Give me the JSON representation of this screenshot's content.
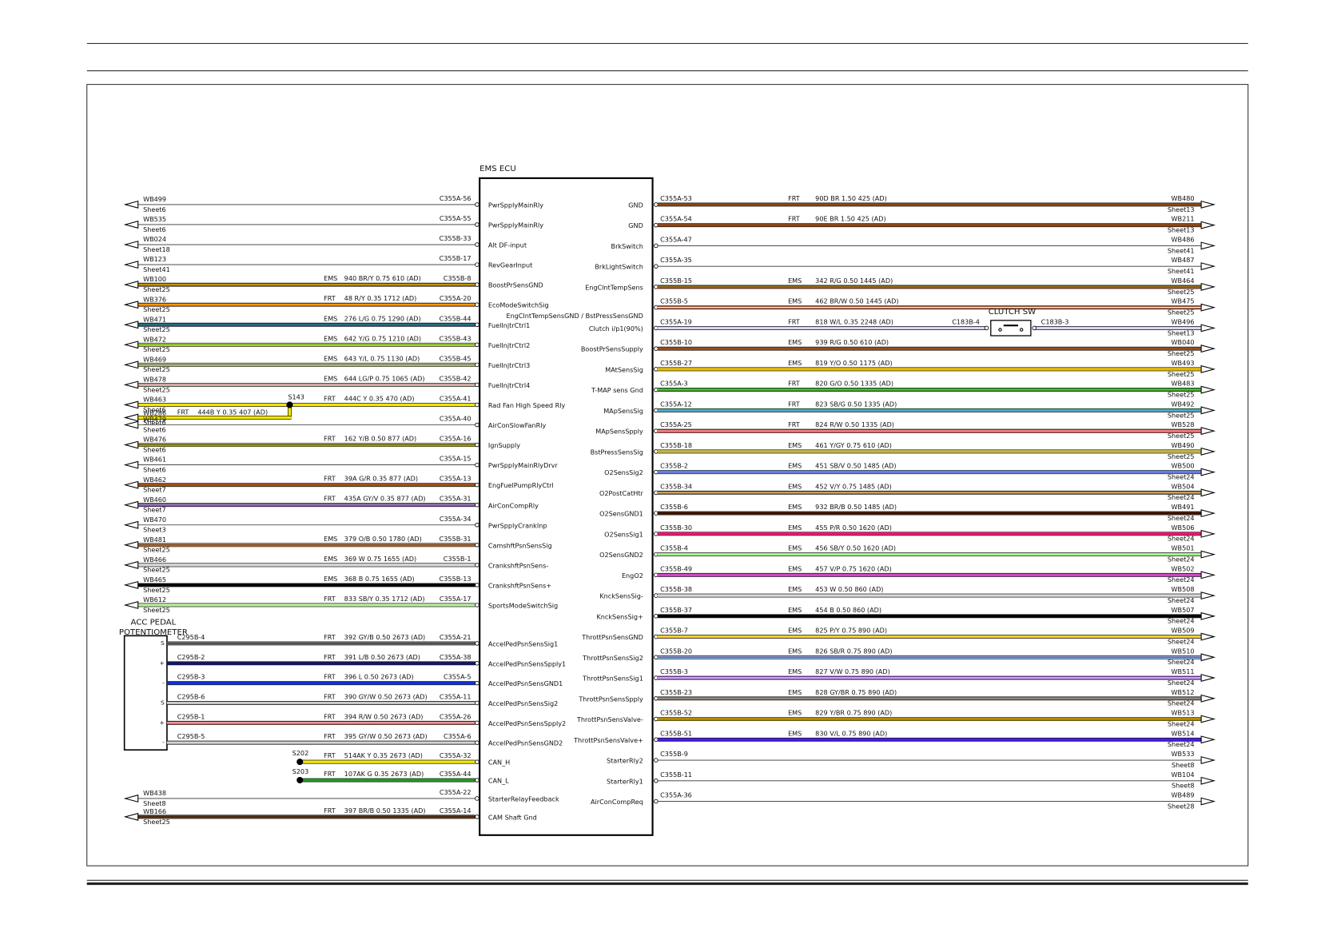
{
  "ecu": {
    "title": "EMS ECU"
  },
  "left_wires": [
    {
      "wb": "WB499",
      "sheet": "Sheet6",
      "pin": "C355A-56",
      "signal": "PwrSpplyMainRly"
    },
    {
      "wb": "WB535",
      "sheet": "Sheet6",
      "pin": "C355A-55",
      "signal": "PwrSpplyMainRly"
    },
    {
      "wb": "WB024",
      "sheet": "Sheet18",
      "pin": "C355B-33",
      "signal": "Alt DF-input"
    },
    {
      "wb": "WB123",
      "sheet": "Sheet41",
      "pin": "C355B-17",
      "signal": "RevGearInput"
    },
    {
      "wb": "WB100",
      "sheet": "Sheet25",
      "harness": "EMS",
      "spec": "940 BR/Y 0.75 610 (AD)",
      "pin": "C355B-8",
      "signal": "BoostPrSensGND",
      "color": "#8b4513",
      "stripe": "#f2e600"
    },
    {
      "wb": "WB376",
      "sheet": "Sheet25",
      "harness": "FRT",
      "spec": "48 R/Y 0.35 1712 (AD)",
      "pin": "C355A-20",
      "signal": "EcoModeSwitchSig",
      "color": "#ff4500",
      "stripe": "#ffd000"
    },
    {
      "wb": "WB471",
      "sheet": "Sheet25",
      "harness": "EMS",
      "spec": "276 L/G 0.75 1290 (AD)",
      "pin": "C355B-44",
      "signal": "FuelInjtrCtrl1",
      "color": "#1a3fd0",
      "stripe": "#2e9e2e"
    },
    {
      "wb": "WB472",
      "sheet": "Sheet25",
      "harness": "EMS",
      "spec": "642 Y/G 0.75 1210 (AD)",
      "pin": "C355B-43",
      "signal": "FuelInjtrCtrl2",
      "color": "#e8e000",
      "stripe": "#3aa83a"
    },
    {
      "wb": "WB469",
      "sheet": "Sheet25",
      "harness": "EMS",
      "spec": "643 Y/L 0.75 1130 (AD)",
      "pin": "C355B-45",
      "signal": "FuelInjtrCtrl3",
      "color": "#e8e000",
      "stripe": "#3060d0"
    },
    {
      "wb": "WB478",
      "sheet": "Sheet25",
      "harness": "EMS",
      "spec": "644 LG/P 0.75 1065 (AD)",
      "pin": "C355B-42",
      "signal": "FuelInjtrCtrl4",
      "color": "#9be08a",
      "stripe": "#ff70b0"
    },
    {
      "wb": "WB463",
      "sheet": "Sheet6",
      "harness": "FRT",
      "spec": "444C Y 0.35 470 (AD)",
      "pin": "C355A-41",
      "signal": "Rad Fan High Speed Rly",
      "color": "#f2e600",
      "branch": {
        "splice": "S143",
        "wb": "WB286",
        "sheet": "Sheet6",
        "harness": "FRT",
        "spec": "444B Y 0.35 407 (AD)",
        "color": "#f2e600"
      }
    },
    {
      "wb": "WB479",
      "sheet": "Sheet6",
      "pin": "C355A-40",
      "signal": "AirConSlowFanRly"
    },
    {
      "wb": "WB476",
      "sheet": "Sheet6",
      "harness": "FRT",
      "spec": "162 Y/B 0.50 877 (AD)",
      "pin": "C355A-16",
      "signal": "IgnSupply",
      "color": "#e8e000",
      "stripe": "#222"
    },
    {
      "wb": "WB461",
      "sheet": "Sheet6",
      "pin": "C355A-15",
      "signal": "PwrSpplyMainRlyDrvr"
    },
    {
      "wb": "WB462",
      "sheet": "Sheet7",
      "harness": "FRT",
      "spec": "39A G/R 0.35 877 (AD)",
      "pin": "C355A-13",
      "signal": "EngFuelPumpRlyCtrl",
      "color": "#7a6a10",
      "stripe": "#d03020"
    },
    {
      "wb": "WB460",
      "sheet": "Sheet7",
      "harness": "FRT",
      "spec": "435A GY/V 0.35 877 (AD)",
      "pin": "C355A-31",
      "signal": "AirConCompRly",
      "color": "#7d3fc0",
      "stripe": "#999"
    },
    {
      "wb": "WB470",
      "sheet": "Sheet3",
      "pin": "C355A-34",
      "signal": "PwrSpplyCrankInp"
    },
    {
      "wb": "WB481",
      "sheet": "Sheet25",
      "harness": "EMS",
      "spec": "379 O/B 0.50 1780 (AD)",
      "pin": "C355B-31",
      "signal": "CamshftPsnSensSig",
      "color": "#f08a3c",
      "stripe": "#333"
    },
    {
      "wb": "WB466",
      "sheet": "Sheet25",
      "harness": "EMS",
      "spec": "369 W 0.75 1655 (AD)",
      "pin": "C355B-1",
      "signal": "CrankshftPsnSens-",
      "color": "#d8d8d8"
    },
    {
      "wb": "WB465",
      "sheet": "Sheet25",
      "harness": "EMS",
      "spec": "368 B 0.75 1655 (AD)",
      "pin": "C355B-13",
      "signal": "CrankshftPsnSens+",
      "color": "#000"
    },
    {
      "wb": "WB612",
      "sheet": "Sheet25",
      "harness": "FRT",
      "spec": "833 SB/Y 0.35 1712 (AD)",
      "pin": "C355A-17",
      "signal": "SportsModeSwitchSig",
      "color": "#b7f0a0"
    }
  ],
  "pedal": {
    "title": [
      "ACC PEDAL",
      "POTENTIOMETER"
    ],
    "wires": [
      {
        "conn": "C295B-4",
        "mark": "S",
        "harness": "FRT",
        "spec": "392 GY/B 0.50 2673 (AD)",
        "pin": "C355A-21",
        "signal": "AccelPedPsnSensSig1",
        "color": "#888",
        "stripe": "#222"
      },
      {
        "conn": "C295B-2",
        "mark": "+",
        "harness": "FRT",
        "spec": "391 L/B 0.50 2673 (AD)",
        "pin": "C355A-38",
        "signal": "AccelPedPsnSensSpply1",
        "color": "#10107a",
        "stripe": "#222"
      },
      {
        "conn": "C295B-3",
        "mark": "-",
        "harness": "FRT",
        "spec": "396 L 0.50 2673 (AD)",
        "pin": "C355A-5",
        "signal": "AccelPedPsnSensGND1",
        "color": "#1030d8"
      },
      {
        "conn": "C295B-6",
        "mark": "S",
        "harness": "FRT",
        "spec": "390 GY/W 0.50 2673 (AD)",
        "pin": "C355A-11",
        "signal": "AccelPedPsnSensSig2",
        "color": "#999",
        "stripe": "#fff"
      },
      {
        "conn": "C295B-1",
        "mark": "+",
        "harness": "FRT",
        "spec": "394 R/W 0.50 2673 (AD)",
        "pin": "C355A-26",
        "signal": "AccelPedPsnSensSpply2",
        "color": "#e02020",
        "stripe": "#fff"
      },
      {
        "conn": "C295B-5",
        "mark": "-",
        "harness": "FRT",
        "spec": "395 GY/W 0.50 2673 (AD)",
        "pin": "C355A-6",
        "signal": "AccelPedPsnSensGND2",
        "color": "#aaa",
        "stripe": "#fff"
      }
    ]
  },
  "left_lower": [
    {
      "splice": "S202",
      "harness": "FRT",
      "spec": "514AK Y 0.35 2673 (AD)",
      "pin": "C355A-32",
      "signal": "CAN_H",
      "color": "#f2e600"
    },
    {
      "splice": "S203",
      "harness": "FRT",
      "spec": "107AK G 0.35 2673 (AD)",
      "pin": "C355A-44",
      "signal": "CAN_L",
      "color": "#20a020"
    },
    {
      "wb": "WB438",
      "sheet": "Sheet8",
      "pin": "C355A-22",
      "signal": "StarterRelayFeedback"
    },
    {
      "wb": "WB166",
      "sheet": "Sheet25",
      "harness": "FRT",
      "spec": "397 BR/B 0.50 1335 (AD)",
      "pin": "C355A-14",
      "signal": "CAM Shaft Gnd",
      "color": "#7a3a10",
      "stripe": "#222"
    }
  ],
  "right_wires": [
    {
      "pin": "C355A-53",
      "harness": "FRT",
      "spec": "90D BR 1.50 425 (AD)",
      "wb": "WB480",
      "sheet": "Sheet13",
      "signal": "GND",
      "color": "#8b4513"
    },
    {
      "pin": "C355A-54",
      "harness": "FRT",
      "spec": "90E BR 1.50 425 (AD)",
      "wb": "WB211",
      "sheet": "Sheet13",
      "signal": "GND",
      "color": "#8b4513"
    },
    {
      "pin": "C355A-47",
      "wb": "WB486",
      "sheet": "Sheet41",
      "signal": "BrkSwitch"
    },
    {
      "pin": "C355A-35",
      "wb": "WB487",
      "sheet": "Sheet41",
      "signal": "BrkLightSwitch"
    },
    {
      "pin": "C355B-15",
      "harness": "EMS",
      "spec": "342 R/G 0.50 1445 (AD)",
      "wb": "WB464",
      "sheet": "Sheet25",
      "signal": "EngClntTempSens",
      "color": "#b0401a",
      "stripe": "#7a8a20"
    },
    {
      "pin": "C355B-5",
      "harness": "EMS",
      "spec": "462 BR/W 0.50 1445 (AD)",
      "wb": "WB475",
      "sheet": "Sheet25",
      "signal": "EngClntTempSensGND / BstPressSensGND",
      "color": "#a0522d",
      "stripe": "#fff"
    },
    {
      "pin": "C355A-19",
      "harness": "FRT",
      "spec": "818 W/L 0.35 2248 (AD)",
      "wb": "WB496",
      "sheet": "Sheet13",
      "signal": "Clutch i/p1(90%)",
      "color": "#b8b8f0",
      "stripe": "#fff",
      "clutch": {
        "name": "CLUTCH SW",
        "conn_in": "C183B-4",
        "conn_out": "C183B-3"
      }
    },
    {
      "pin": "C355B-10",
      "harness": "EMS",
      "spec": "939 R/G 0.50 610 (AD)",
      "wb": "WB040",
      "sheet": "Sheet25",
      "signal": "BoostPrSensSupply",
      "color": "#b0401a",
      "stripe": "#7a5a20"
    },
    {
      "pin": "C355B-27",
      "harness": "EMS",
      "spec": "819 Y/O 0.50 1175 (AD)",
      "wb": "WB493",
      "sheet": "Sheet25",
      "signal": "MAtSensSig",
      "color": "#e8d000",
      "stripe": "#f08a3c"
    },
    {
      "pin": "C355A-3",
      "harness": "FRT",
      "spec": "820 G/O 0.50 1335 (AD)",
      "wb": "WB483",
      "sheet": "Sheet25",
      "signal": "T-MAP sens Gnd",
      "color": "#20a020",
      "stripe": "#f08a3c"
    },
    {
      "pin": "C355A-12",
      "harness": "FRT",
      "spec": "823 SB/G 0.50 1335 (AD)",
      "wb": "WB492",
      "sheet": "Sheet25",
      "signal": "MApSensSig",
      "color": "#30c060",
      "stripe": "#60a0ff"
    },
    {
      "pin": "C355A-25",
      "harness": "FRT",
      "spec": "824 R/W 0.50 1335 (AD)",
      "wb": "WB528",
      "sheet": "Sheet25",
      "signal": "MApSensSpply",
      "color": "#e02020",
      "stripe": "#fff"
    },
    {
      "pin": "C355B-18",
      "harness": "EMS",
      "spec": "461 Y/GY 0.75 610 (AD)",
      "wb": "WB490",
      "sheet": "Sheet25",
      "signal": "BstPressSensSig",
      "color": "#d8c840",
      "stripe": "#999"
    },
    {
      "pin": "C355B-2",
      "harness": "EMS",
      "spec": "451 SB/V 0.50 1485 (AD)",
      "wb": "WB500",
      "sheet": "Sheet24",
      "signal": "O2SensSig2",
      "color": "#60a0ff",
      "stripe": "#7d3fc0"
    },
    {
      "pin": "C355B-34",
      "harness": "EMS",
      "spec": "452 V/Y 0.75 1485 (AD)",
      "wb": "WB504",
      "sheet": "Sheet24",
      "signal": "O2PostCatHtr",
      "color": "#9040d0",
      "stripe": "#f2e600"
    },
    {
      "pin": "C355B-6",
      "harness": "EMS",
      "spec": "932 BR/B 0.50 1485 (AD)",
      "wb": "WB491",
      "sheet": "Sheet24",
      "signal": "O2SensGND1",
      "color": "#5a2a10",
      "stripe": "#000"
    },
    {
      "pin": "C355B-30",
      "harness": "EMS",
      "spec": "455 P/R 0.50 1620 (AD)",
      "wb": "WB506",
      "sheet": "Sheet24",
      "signal": "O2SensSig1",
      "color": "#ff1a8c",
      "stripe": "#e02020"
    },
    {
      "pin": "C355B-4",
      "harness": "EMS",
      "spec": "456 SB/Y 0.50 1620 (AD)",
      "wb": "WB501",
      "sheet": "Sheet24",
      "signal": "O2SensGND2",
      "color": "#a8f090"
    },
    {
      "pin": "C355B-49",
      "harness": "EMS",
      "spec": "457 V/P 0.75 1620 (AD)",
      "wb": "WB502",
      "sheet": "Sheet24",
      "signal": "EngO2",
      "color": "#b020d0",
      "stripe": "#ff70b0"
    },
    {
      "pin": "C355B-38",
      "harness": "EMS",
      "spec": "453 W 0.50 860 (AD)",
      "wb": "WB508",
      "sheet": "Sheet24",
      "signal": "KnckSensSig-",
      "color": "#d8d8d8"
    },
    {
      "pin": "C355B-37",
      "harness": "EMS",
      "spec": "454 B 0.50 860 (AD)",
      "wb": "WB507",
      "sheet": "Sheet24",
      "signal": "KnckSensSig+",
      "color": "#000"
    },
    {
      "pin": "C355B-7",
      "harness": "EMS",
      "spec": "825 P/Y 0.75 890 (AD)",
      "wb": "WB509",
      "sheet": "Sheet24",
      "signal": "ThrottPsnSensGND",
      "color": "#ffa0a0",
      "stripe": "#f2e600"
    },
    {
      "pin": "C355B-20",
      "harness": "EMS",
      "spec": "826 SB/R 0.75 890 (AD)",
      "wb": "WB510",
      "sheet": "Sheet24",
      "signal": "ThrottPsnSensSig2",
      "color": "#80c0ff",
      "stripe": "#e02020"
    },
    {
      "pin": "C355B-3",
      "harness": "EMS",
      "spec": "827 V/W 0.75 890 (AD)",
      "wb": "WB511",
      "sheet": "Sheet24",
      "signal": "ThrottPsnSensSig1",
      "color": "#9040d0",
      "stripe": "#fff"
    },
    {
      "pin": "C355B-23",
      "harness": "EMS",
      "spec": "828 GY/BR 0.75 890 (AD)",
      "wb": "WB512",
      "sheet": "Sheet24",
      "signal": "ThrottPsnSensSpply",
      "color": "#8a6a50",
      "stripe": "#999"
    },
    {
      "pin": "C355B-52",
      "harness": "EMS",
      "spec": "829 Y/BR 0.75 890 (AD)",
      "wb": "WB513",
      "sheet": "Sheet24",
      "signal": "ThrottPsnSensValve-",
      "color": "#d8c000",
      "stripe": "#8b4513"
    },
    {
      "pin": "C355B-51",
      "harness": "EMS",
      "spec": "830 V/L 0.75 890 (AD)",
      "wb": "WB514",
      "sheet": "Sheet24",
      "signal": "ThrottPsnSensValve+",
      "color": "#4a10e0",
      "stripe": "#1a3fd0"
    },
    {
      "pin": "C355B-9",
      "wb": "WB533",
      "sheet": "Sheet8",
      "signal": "StarterRly2"
    },
    {
      "pin": "C355B-11",
      "wb": "WB104",
      "sheet": "Sheet8",
      "signal": "StarterRly1"
    },
    {
      "pin": "C355A-36",
      "wb": "WB489",
      "sheet": "Sheet28",
      "signal": "AirConCompReq"
    }
  ]
}
